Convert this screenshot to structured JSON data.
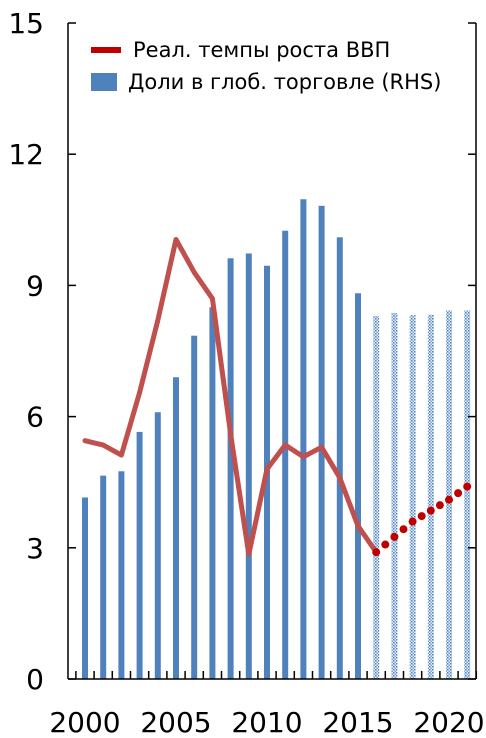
{
  "chart_data": {
    "type": "bar",
    "x": [
      2000,
      2001,
      2002,
      2003,
      2004,
      2005,
      2006,
      2007,
      2008,
      2009,
      2010,
      2011,
      2012,
      2013,
      2014,
      2015,
      2016,
      2017,
      2018,
      2019,
      2020,
      2021
    ],
    "x_tick_labels": [
      "2000",
      "2005",
      "2010",
      "2015",
      "2020"
    ],
    "x_tick_values": [
      2000,
      2005,
      2010,
      2015,
      2020
    ],
    "y_tick_labels": [
      "0",
      "3",
      "6",
      "9",
      "12",
      "15"
    ],
    "y_tick_values": [
      0,
      3,
      6,
      9,
      12,
      15
    ],
    "ylim": [
      0,
      15
    ],
    "grid": false,
    "legend_placement": "top",
    "series": [
      {
        "name": "Доли в глоб. торговле (RHS)",
        "type": "bar",
        "color": "#4f81bd",
        "values": [
          4.15,
          4.65,
          4.75,
          5.65,
          6.1,
          6.9,
          7.85,
          8.5,
          9.62,
          9.73,
          9.45,
          10.25,
          10.97,
          10.82,
          10.1,
          8.82,
          8.3,
          8.37,
          8.32,
          8.33,
          8.43,
          8.43
        ],
        "projection_from_index": 16
      },
      {
        "name": "Реал. темпы роста ВВП",
        "type": "line",
        "color": "#c0504d",
        "values": [
          5.45,
          5.35,
          5.12,
          6.55,
          8.2,
          10.05,
          9.3,
          8.7,
          5.6,
          2.85,
          4.8,
          5.35,
          5.08,
          5.3,
          4.6,
          3.5,
          2.9,
          null,
          null,
          null,
          null,
          null
        ]
      },
      {
        "name": "",
        "type": "dotted-line",
        "color": "#c00000",
        "values": [
          null,
          null,
          null,
          null,
          null,
          null,
          null,
          null,
          null,
          null,
          null,
          null,
          null,
          null,
          null,
          null,
          2.9,
          3.25,
          3.6,
          3.85,
          4.1,
          4.4
        ]
      }
    ]
  }
}
